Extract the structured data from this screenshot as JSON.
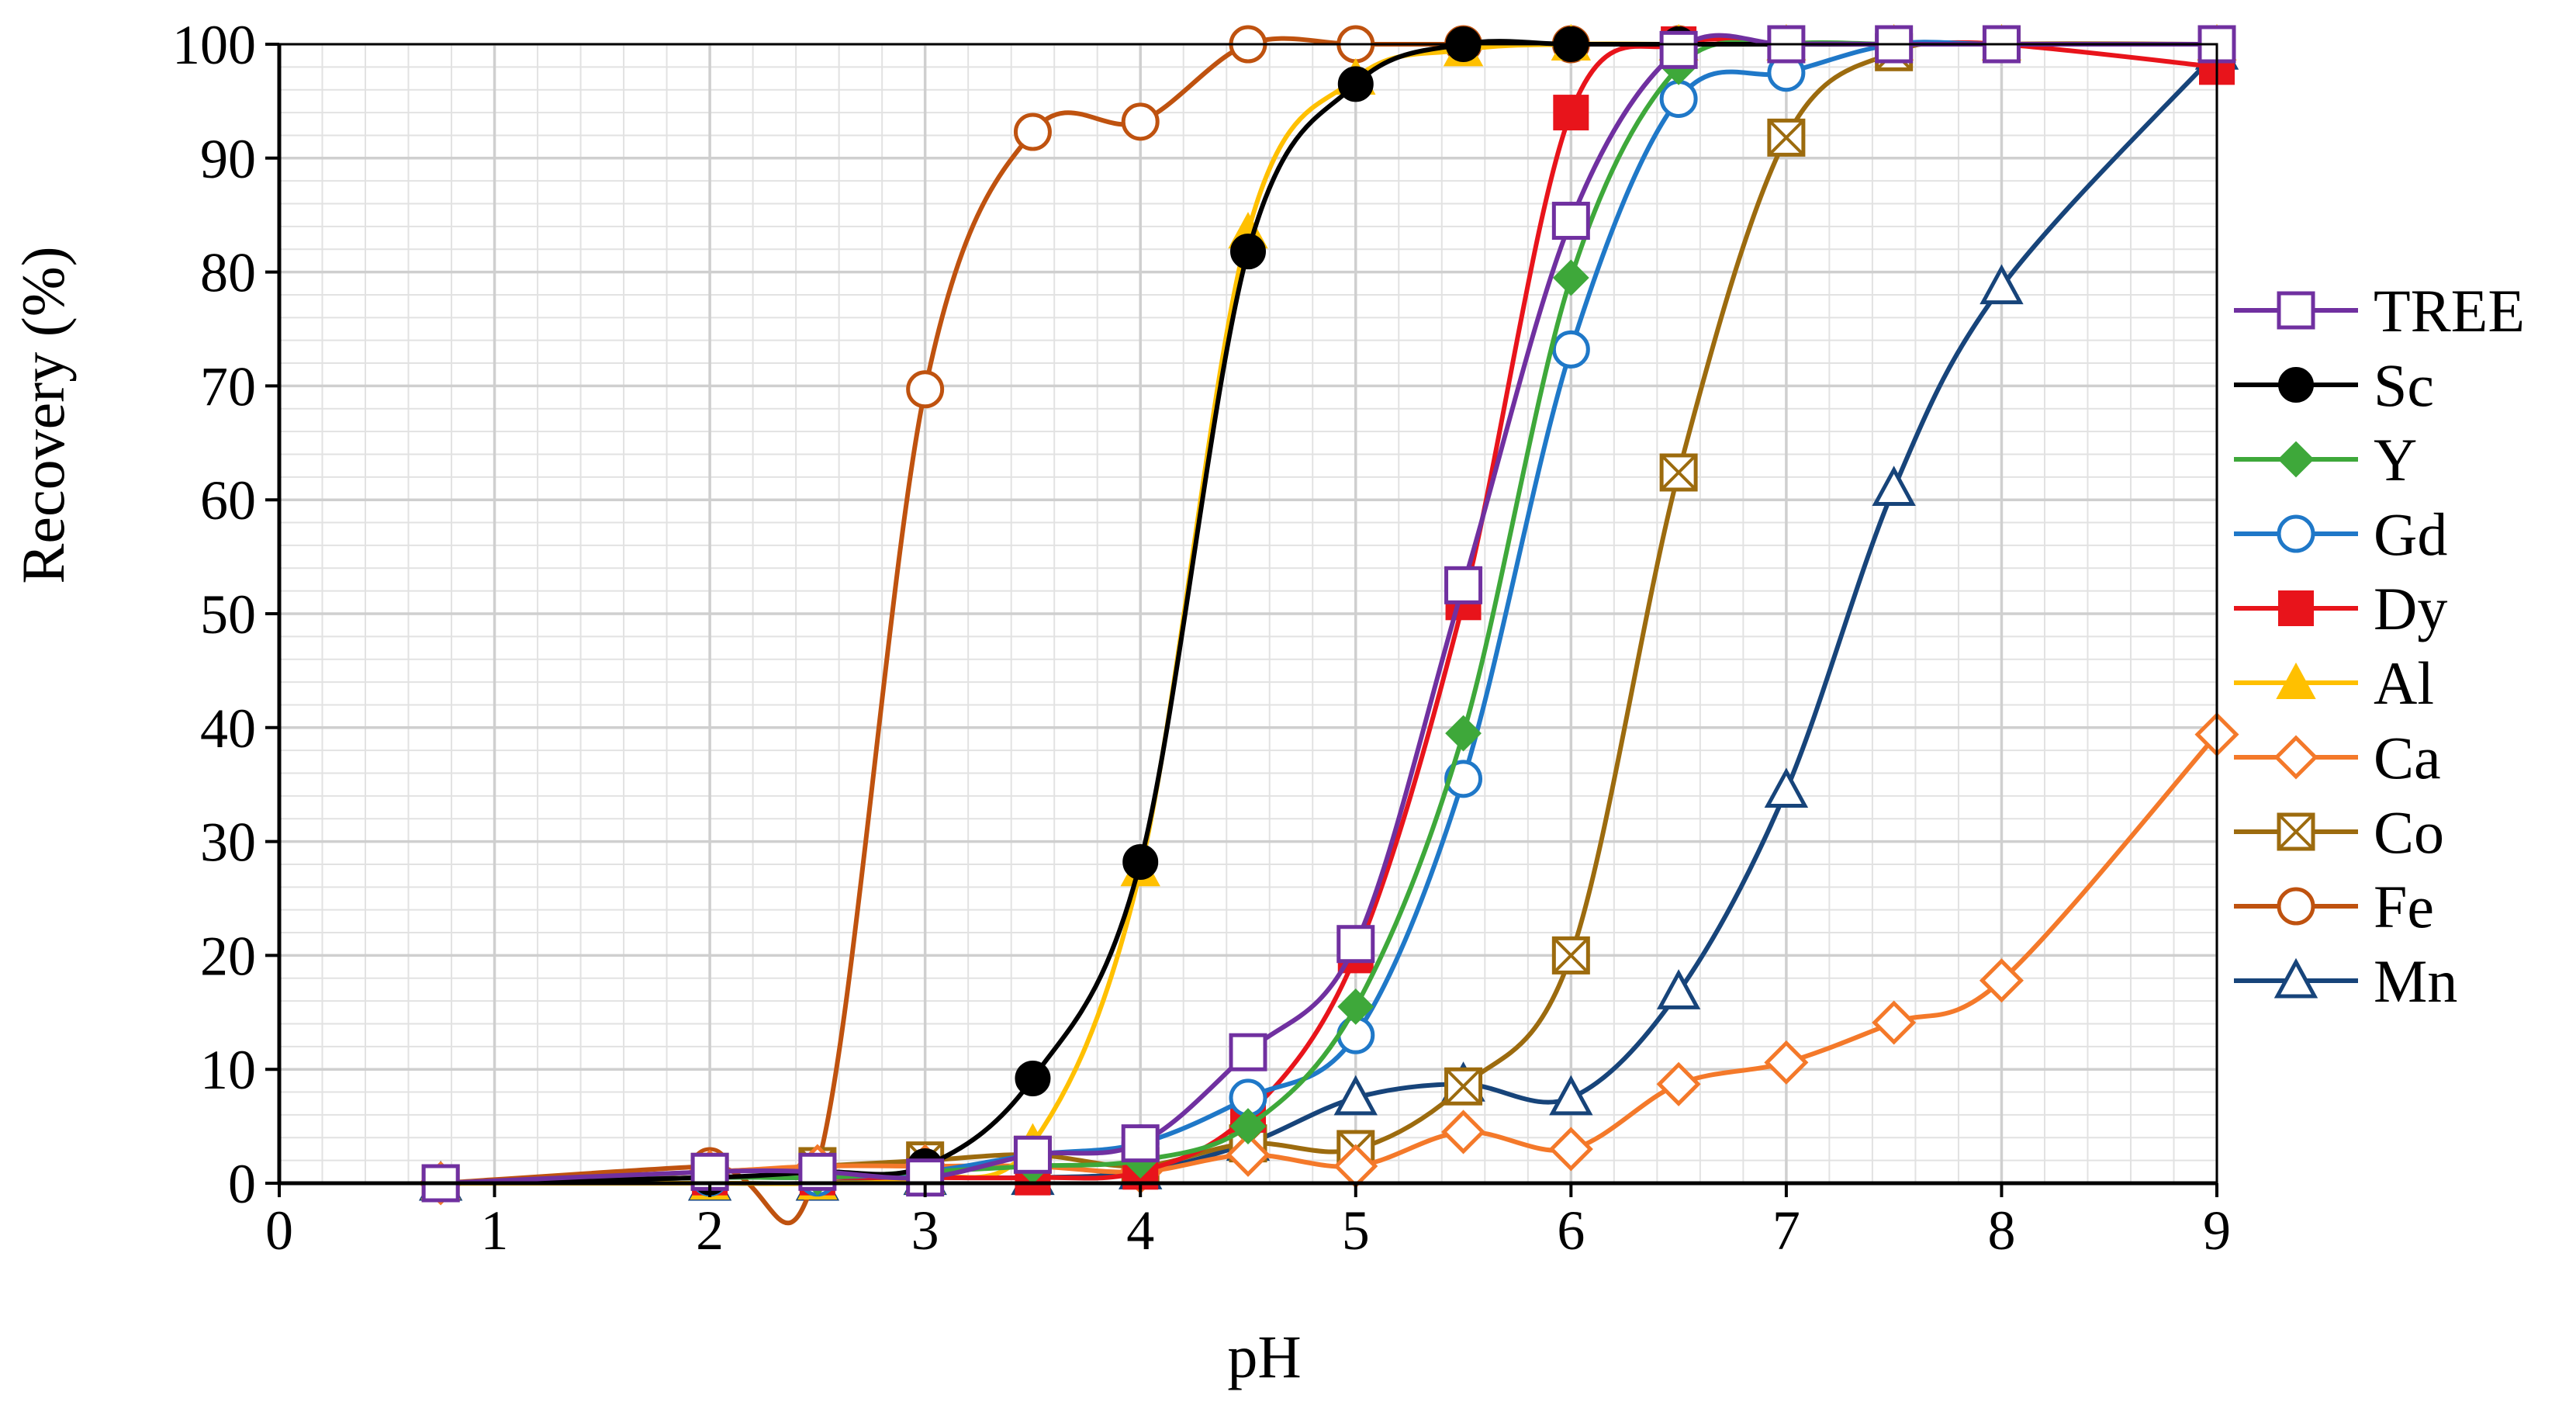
{
  "chart_data": {
    "type": "line",
    "title": "",
    "xlabel": "pH",
    "ylabel": "Recovery (%)",
    "xlim": [
      0,
      9
    ],
    "ylim": [
      0,
      100
    ],
    "xticks": [
      0,
      1,
      2,
      3,
      4,
      5,
      6,
      7,
      8,
      9
    ],
    "yticks": [
      0,
      10,
      20,
      30,
      40,
      50,
      60,
      70,
      80,
      90,
      100
    ],
    "grid": true,
    "legend_position": "right",
    "series": [
      {
        "name": "TREE",
        "color": "#7030a0",
        "marker": "square-open",
        "x": [
          0.75,
          2,
          2.5,
          3,
          3.5,
          4,
          4.5,
          5,
          5.5,
          6,
          6.5,
          7,
          7.5,
          8,
          9
        ],
        "y": [
          0,
          1,
          1,
          0.5,
          2.5,
          3.5,
          11.5,
          21,
          52.5,
          84.5,
          99.5,
          100,
          100,
          100,
          100
        ]
      },
      {
        "name": "Sc",
        "color": "#000000",
        "marker": "circle-filled",
        "x": [
          0.75,
          2,
          2.5,
          3,
          3.5,
          4,
          4.5,
          5,
          5.5,
          6,
          6.5,
          7,
          7.5,
          8,
          9
        ],
        "y": [
          0,
          0.5,
          1,
          1.5,
          9.2,
          28.2,
          81.8,
          96.5,
          100,
          100,
          100,
          100,
          100,
          100,
          100
        ]
      },
      {
        "name": "Y",
        "color": "#3ea83a",
        "marker": "diamond-filled",
        "x": [
          0.75,
          2,
          2.5,
          3,
          3.5,
          4,
          4.5,
          5,
          5.5,
          6,
          6.5,
          7,
          7.5,
          8,
          9
        ],
        "y": [
          0,
          0.5,
          0.5,
          1,
          1.5,
          2,
          5,
          15.5,
          39.5,
          79.5,
          98,
          100,
          100,
          100,
          100
        ]
      },
      {
        "name": "Gd",
        "color": "#1f78c8",
        "marker": "circle-open",
        "x": [
          0.75,
          2,
          2.5,
          3,
          3.5,
          4,
          4.5,
          5,
          5.5,
          6,
          6.5,
          7,
          7.5,
          8,
          9
        ],
        "y": [
          0,
          0.5,
          0.5,
          1,
          2.5,
          3.5,
          7.5,
          13,
          35.5,
          73.2,
          95.2,
          97.5,
          100,
          100,
          100
        ]
      },
      {
        "name": "Dy",
        "color": "#e8141b",
        "marker": "square-filled",
        "x": [
          0.75,
          2,
          2.5,
          3,
          3.5,
          4,
          4.5,
          5,
          5.5,
          6,
          6.5,
          7,
          7.5,
          8,
          9
        ],
        "y": [
          0,
          0.5,
          0.5,
          0.5,
          0.5,
          1,
          6,
          20,
          51,
          94,
          100,
          100,
          100,
          100,
          98
        ]
      },
      {
        "name": "Al",
        "color": "#ffc000",
        "marker": "triangle-filled",
        "x": [
          0.75,
          2,
          2.5,
          3,
          3.5,
          4,
          4.5,
          5,
          5.5,
          6,
          6.5,
          7,
          7.5,
          8,
          9
        ],
        "y": [
          0,
          0,
          0,
          0.5,
          3.5,
          27.5,
          83.5,
          97,
          99.5,
          100,
          100,
          100,
          100,
          100,
          100
        ]
      },
      {
        "name": "Ca",
        "color": "#f4792a",
        "marker": "diamond-open",
        "x": [
          0.75,
          2,
          2.5,
          3,
          3.5,
          4,
          4.5,
          5,
          5.5,
          6,
          6.5,
          7,
          7.5,
          8,
          9
        ],
        "y": [
          0,
          1,
          1.5,
          1.5,
          1.5,
          1,
          2.5,
          1.5,
          4.5,
          3,
          8.7,
          10.6,
          14.1,
          17.8,
          39.4
        ]
      },
      {
        "name": "Co",
        "color": "#9c6b0e",
        "marker": "square-x",
        "x": [
          0.75,
          2,
          2.5,
          3,
          3.5,
          4,
          4.5,
          5,
          5.5,
          6,
          6.5,
          7,
          7.5,
          8,
          9
        ],
        "y": [
          0,
          1,
          1.5,
          2,
          2.5,
          1.5,
          3.5,
          3,
          8.5,
          20,
          62.4,
          91.8,
          99.3,
          100,
          100
        ]
      },
      {
        "name": "Fe",
        "color": "#bf520f",
        "marker": "circle-open",
        "x": [
          0.75,
          2,
          2.5,
          3,
          3.5,
          4,
          4.5,
          5,
          5.5,
          6,
          6.5,
          7,
          7.5,
          8,
          9
        ],
        "y": [
          0,
          1.5,
          1.5,
          69.7,
          92.3,
          93.2,
          100,
          100,
          100,
          100,
          100,
          100,
          100,
          100,
          100
        ]
      },
      {
        "name": "Mn",
        "color": "#17447a",
        "marker": "triangle-open",
        "x": [
          0.75,
          2,
          2.5,
          3,
          3.5,
          4,
          4.5,
          5,
          5.5,
          6,
          6.5,
          7,
          7.5,
          8,
          9
        ],
        "y": [
          0,
          0,
          0,
          0.5,
          0.5,
          1,
          3.5,
          7.5,
          8.7,
          7.5,
          16.8,
          34.5,
          61,
          78.7,
          99.3
        ]
      }
    ]
  }
}
